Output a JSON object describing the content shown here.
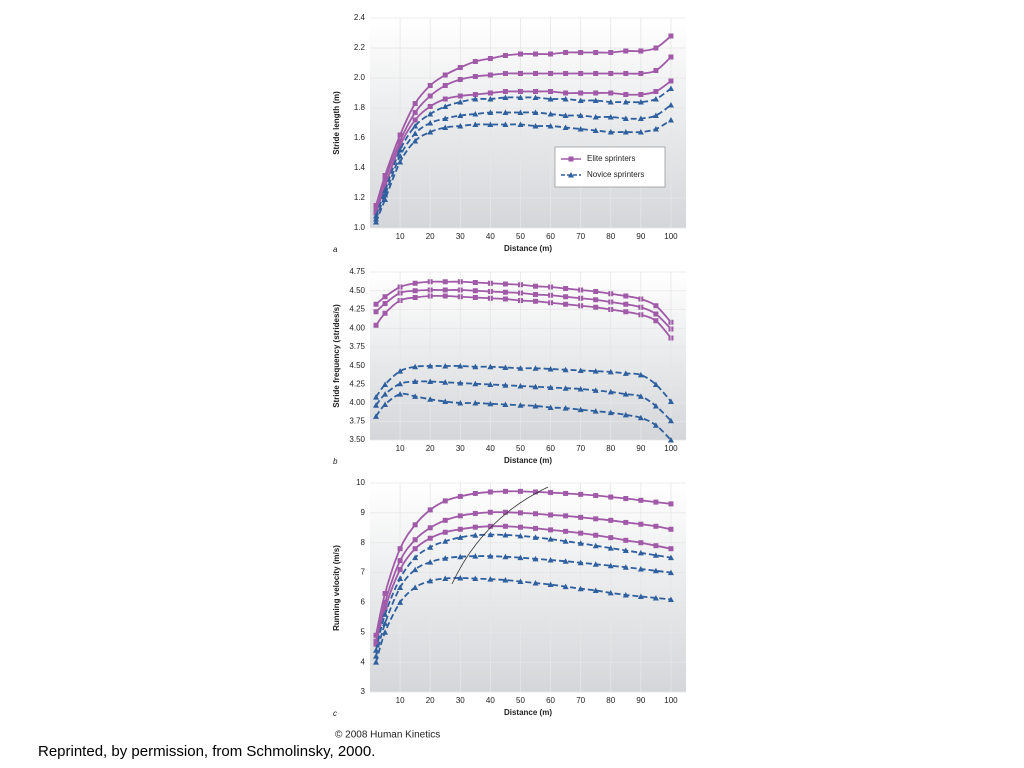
{
  "chart_data": [
    {
      "type": "line",
      "panel": "a",
      "ylabel": "Stride length (m)",
      "xlabel": "Distance (m)",
      "xlim": [
        0,
        105
      ],
      "xticks": [
        10,
        20,
        30,
        40,
        50,
        60,
        70,
        80,
        90,
        100
      ],
      "ylim": [
        1.0,
        2.4
      ],
      "yticks": [
        {
          "value": 1.0,
          "label": "1.0"
        },
        1.2,
        1.4,
        1.6,
        1.8,
        {
          "value": 2.0,
          "label": "2.0"
        },
        2.2,
        2.4
      ],
      "legend": "lower right",
      "grid": true,
      "x": [
        2,
        5,
        10,
        15,
        20,
        25,
        30,
        35,
        40,
        45,
        50,
        55,
        60,
        65,
        70,
        75,
        80,
        85,
        90,
        95,
        100
      ],
      "series": [
        {
          "name": "Elite sprinters",
          "color": "#a05aa8",
          "marker": "square",
          "dashed": false,
          "values": [
            [
              1.15,
              1.35,
              1.62,
              1.83,
              1.95,
              2.02,
              2.07,
              2.11,
              2.13,
              2.15,
              2.16,
              2.16,
              2.16,
              2.17,
              2.17,
              2.17,
              2.17,
              2.18,
              2.18,
              2.2,
              2.28
            ],
            [
              1.12,
              1.32,
              1.58,
              1.77,
              1.88,
              1.95,
              1.99,
              2.01,
              2.02,
              2.03,
              2.03,
              2.03,
              2.03,
              2.03,
              2.03,
              2.03,
              2.03,
              2.03,
              2.03,
              2.05,
              2.14
            ],
            [
              1.1,
              1.28,
              1.55,
              1.72,
              1.81,
              1.86,
              1.88,
              1.89,
              1.9,
              1.91,
              1.91,
              1.91,
              1.91,
              1.9,
              1.9,
              1.9,
              1.9,
              1.89,
              1.89,
              1.91,
              1.98
            ]
          ]
        },
        {
          "name": "Novice sprinters",
          "color": "#2e5f9e",
          "marker": "triangle",
          "dashed": true,
          "values": [
            [
              1.08,
              1.25,
              1.52,
              1.68,
              1.76,
              1.81,
              1.84,
              1.86,
              1.86,
              1.87,
              1.87,
              1.87,
              1.86,
              1.86,
              1.85,
              1.85,
              1.84,
              1.84,
              1.84,
              1.86,
              1.93
            ],
            [
              1.06,
              1.22,
              1.48,
              1.63,
              1.7,
              1.73,
              1.75,
              1.76,
              1.77,
              1.77,
              1.77,
              1.77,
              1.76,
              1.75,
              1.75,
              1.74,
              1.74,
              1.73,
              1.73,
              1.75,
              1.82
            ],
            [
              1.04,
              1.19,
              1.44,
              1.58,
              1.64,
              1.67,
              1.68,
              1.69,
              1.69,
              1.69,
              1.69,
              1.68,
              1.68,
              1.67,
              1.66,
              1.65,
              1.64,
              1.64,
              1.64,
              1.66,
              1.72
            ]
          ]
        }
      ]
    },
    {
      "type": "line",
      "ylabel": "Stride frequency (strides/s)",
      "xlim": [
        0,
        105
      ],
      "ylim": [
        3.75,
        4.75
      ],
      "yticks": [
        4.75,
        {
          "value": 4.5,
          "label": "4.50"
        },
        4.25,
        {
          "value": 4.0,
          "label": "4.00"
        },
        3.75
      ],
      "grid": true,
      "x": [
        2,
        5,
        10,
        15,
        20,
        25,
        30,
        35,
        40,
        45,
        50,
        55,
        60,
        65,
        70,
        75,
        80,
        85,
        90,
        95,
        100
      ],
      "series": [
        {
          "color": "#a05aa8",
          "marker": "square",
          "dashed": false,
          "values": [
            [
              4.32,
              4.42,
              4.55,
              4.6,
              4.62,
              4.62,
              4.62,
              4.61,
              4.6,
              4.59,
              4.58,
              4.56,
              4.55,
              4.53,
              4.51,
              4.49,
              4.46,
              4.43,
              4.39,
              4.3,
              4.08
            ],
            [
              4.22,
              4.33,
              4.47,
              4.5,
              4.51,
              4.51,
              4.51,
              4.5,
              4.49,
              4.48,
              4.47,
              4.45,
              4.44,
              4.42,
              4.4,
              4.38,
              4.35,
              4.32,
              4.28,
              4.19,
              3.99
            ],
            [
              4.04,
              4.2,
              4.37,
              4.41,
              4.43,
              4.43,
              4.42,
              4.41,
              4.4,
              4.39,
              4.37,
              4.36,
              4.34,
              4.32,
              4.3,
              4.28,
              4.25,
              4.22,
              4.18,
              4.1,
              3.87
            ]
          ]
        }
      ]
    },
    {
      "type": "line",
      "panel": "b",
      "xlabel": "Distance (m)",
      "xlim": [
        0,
        105
      ],
      "xticks": [
        10,
        20,
        30,
        40,
        50,
        60,
        70,
        80,
        90,
        100
      ],
      "ylim": [
        3.5,
        4.5
      ],
      "yticks": [
        {
          "value": 4.5,
          "label": "4.50"
        },
        4.25,
        {
          "value": 4.0,
          "label": "4.00"
        },
        3.75,
        {
          "value": 3.5,
          "label": "3.50"
        }
      ],
      "grid": true,
      "x": [
        2,
        5,
        10,
        15,
        20,
        25,
        30,
        35,
        40,
        45,
        50,
        55,
        60,
        65,
        70,
        75,
        80,
        85,
        90,
        95,
        100
      ],
      "series": [
        {
          "color": "#2e5f9e",
          "marker": "triangle",
          "dashed": true,
          "values": [
            [
              4.08,
              4.25,
              4.43,
              4.49,
              4.5,
              4.5,
              4.5,
              4.49,
              4.49,
              4.48,
              4.47,
              4.47,
              4.46,
              4.45,
              4.44,
              4.43,
              4.42,
              4.4,
              4.38,
              4.25,
              4.02
            ],
            [
              3.97,
              4.12,
              4.26,
              4.29,
              4.29,
              4.28,
              4.27,
              4.26,
              4.25,
              4.24,
              4.23,
              4.22,
              4.21,
              4.2,
              4.19,
              4.17,
              4.15,
              4.12,
              4.09,
              3.96,
              3.76
            ],
            [
              3.82,
              3.98,
              4.12,
              4.09,
              4.05,
              4.02,
              4.0,
              4.0,
              3.99,
              3.98,
              3.97,
              3.96,
              3.94,
              3.93,
              3.91,
              3.89,
              3.87,
              3.84,
              3.8,
              3.7,
              3.5
            ]
          ]
        }
      ]
    },
    {
      "type": "line",
      "panel": "c",
      "ylabel": "Running velocity (m/s)",
      "xlabel": "Distance (m)",
      "xlim": [
        0,
        105
      ],
      "xticks": [
        10,
        20,
        30,
        40,
        50,
        60,
        70,
        80,
        90,
        100
      ],
      "ylim": [
        3,
        10
      ],
      "yticks": [
        3,
        4,
        5,
        6,
        7,
        8,
        9,
        10
      ],
      "grid": true,
      "x": [
        2,
        5,
        10,
        15,
        20,
        25,
        30,
        35,
        40,
        45,
        50,
        55,
        60,
        65,
        70,
        75,
        80,
        85,
        90,
        95,
        100
      ],
      "series": [
        {
          "color": "#a05aa8",
          "marker": "square",
          "dashed": false,
          "values": [
            [
              4.9,
              6.3,
              7.8,
              8.6,
              9.1,
              9.4,
              9.55,
              9.65,
              9.7,
              9.72,
              9.72,
              9.7,
              9.68,
              9.65,
              9.62,
              9.58,
              9.53,
              9.48,
              9.42,
              9.36,
              9.3
            ],
            [
              4.7,
              6.0,
              7.4,
              8.1,
              8.5,
              8.75,
              8.9,
              8.98,
              9.02,
              9.02,
              9.0,
              8.97,
              8.93,
              8.9,
              8.85,
              8.8,
              8.75,
              8.68,
              8.62,
              8.55,
              8.45
            ],
            [
              4.6,
              5.8,
              7.1,
              7.8,
              8.15,
              8.35,
              8.45,
              8.52,
              8.55,
              8.55,
              8.52,
              8.48,
              8.43,
              8.38,
              8.32,
              8.25,
              8.17,
              8.08,
              8.0,
              7.9,
              7.8
            ]
          ]
        },
        {
          "color": "#2e5f9e",
          "marker": "triangle",
          "dashed": true,
          "values": [
            [
              4.4,
              5.6,
              6.8,
              7.5,
              7.85,
              8.05,
              8.18,
              8.25,
              8.27,
              8.26,
              8.23,
              8.18,
              8.12,
              8.05,
              7.98,
              7.9,
              7.82,
              7.74,
              7.66,
              7.58,
              7.5
            ],
            [
              4.2,
              5.3,
              6.5,
              7.1,
              7.35,
              7.48,
              7.53,
              7.55,
              7.55,
              7.53,
              7.5,
              7.46,
              7.42,
              7.38,
              7.33,
              7.28,
              7.23,
              7.18,
              7.12,
              7.06,
              7.0
            ],
            [
              4.0,
              5.0,
              6.0,
              6.5,
              6.72,
              6.8,
              6.82,
              6.8,
              6.78,
              6.75,
              6.7,
              6.65,
              6.6,
              6.53,
              6.46,
              6.4,
              6.32,
              6.25,
              6.2,
              6.15,
              6.1
            ]
          ]
        }
      ]
    }
  ],
  "credit": "© 2008 Human Kinetics",
  "caption": "Reprinted, by permission, from Schmolinsky, 2000."
}
